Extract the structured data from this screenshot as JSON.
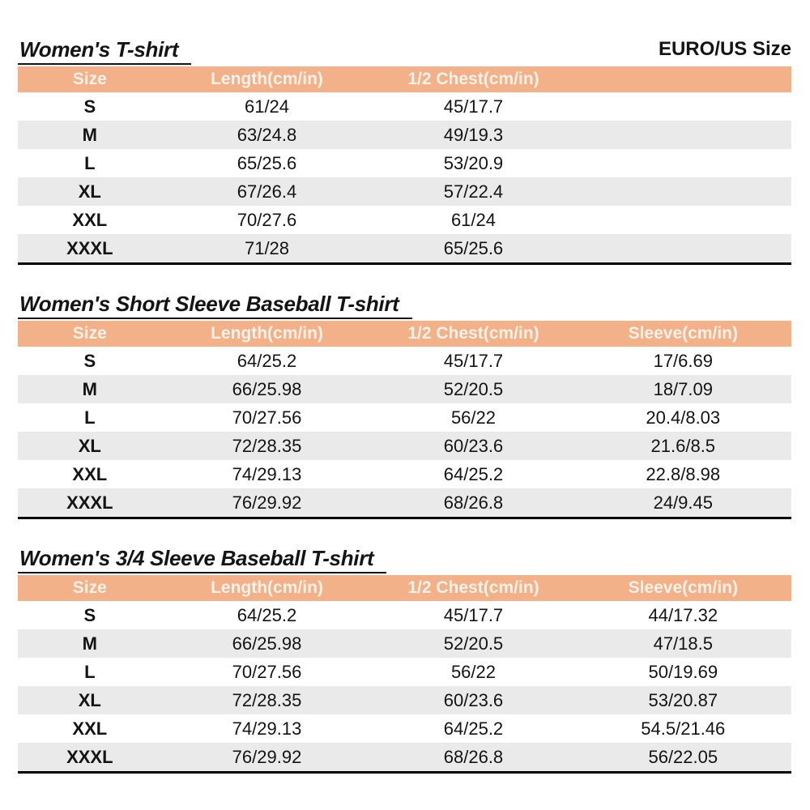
{
  "page": {
    "size_standard_label": "EURO/US Size",
    "colors": {
      "header_bg": "#F2B189",
      "header_text": "#FCF2E9",
      "row_alt_bg": "#EAEAEA",
      "table_bottom_border": "#000000",
      "text": "#141414"
    }
  },
  "tables": [
    {
      "title": "Women's T-shirt",
      "headers": [
        "Size",
        "Length(cm/in)",
        "1/2 Chest(cm/in)",
        ""
      ],
      "rows": [
        [
          "S",
          "61/24",
          "45/17.7",
          ""
        ],
        [
          "M",
          "63/24.8",
          "49/19.3",
          ""
        ],
        [
          "L",
          "65/25.6",
          "53/20.9",
          ""
        ],
        [
          "XL",
          "67/26.4",
          "57/22.4",
          ""
        ],
        [
          "XXL",
          "70/27.6",
          "61/24",
          ""
        ],
        [
          "XXXL",
          "71/28",
          "65/25.6",
          ""
        ]
      ]
    },
    {
      "title": "Women's Short Sleeve Baseball T-shirt",
      "headers": [
        "Size",
        "Length(cm/in)",
        "1/2 Chest(cm/in)",
        "Sleeve(cm/in)"
      ],
      "rows": [
        [
          "S",
          "64/25.2",
          "45/17.7",
          "17/6.69"
        ],
        [
          "M",
          "66/25.98",
          "52/20.5",
          "18/7.09"
        ],
        [
          "L",
          "70/27.56",
          "56/22",
          "20.4/8.03"
        ],
        [
          "XL",
          "72/28.35",
          "60/23.6",
          "21.6/8.5"
        ],
        [
          "XXL",
          "74/29.13",
          "64/25.2",
          "22.8/8.98"
        ],
        [
          "XXXL",
          "76/29.92",
          "68/26.8",
          "24/9.45"
        ]
      ]
    },
    {
      "title": "Women's 3/4 Sleeve Baseball T-shirt",
      "headers": [
        "Size",
        "Length(cm/in)",
        "1/2 Chest(cm/in)",
        "Sleeve(cm/in)"
      ],
      "rows": [
        [
          "S",
          "64/25.2",
          "45/17.7",
          "44/17.32"
        ],
        [
          "M",
          "66/25.98",
          "52/20.5",
          "47/18.5"
        ],
        [
          "L",
          "70/27.56",
          "56/22",
          "50/19.69"
        ],
        [
          "XL",
          "72/28.35",
          "60/23.6",
          "53/20.87"
        ],
        [
          "XXL",
          "74/29.13",
          "64/25.2",
          "54.5/21.46"
        ],
        [
          "XXXL",
          "76/29.92",
          "68/26.8",
          "56/22.05"
        ]
      ]
    }
  ]
}
